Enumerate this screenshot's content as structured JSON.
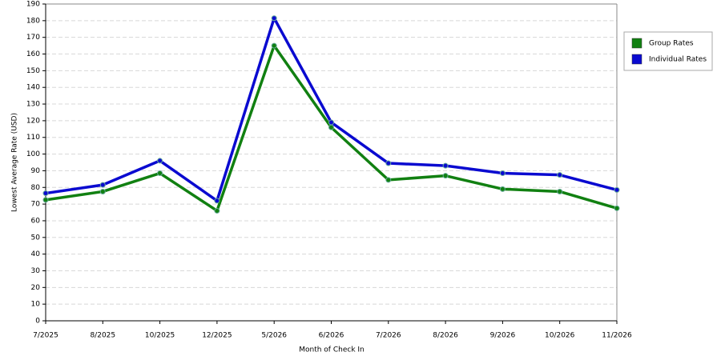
{
  "chart_data": {
    "type": "line",
    "y_label": "Lowest Average Rate (USD)",
    "x_label": "Month of Check In",
    "categories": [
      "7/2025",
      "8/2025",
      "10/2025",
      "12/2025",
      "5/2026",
      "6/2026",
      "7/2026",
      "8/2026",
      "9/2026",
      "10/2026",
      "11/2026"
    ],
    "series": [
      {
        "name": "Group Rates",
        "color": "#118011",
        "values": [
          72.5,
          77.5,
          88.5,
          66,
          165,
          116,
          84.5,
          87,
          79,
          77.5,
          67.5
        ]
      },
      {
        "name": "Individual Rates",
        "color": "#0a0ad0",
        "values": [
          76.5,
          81.5,
          96,
          72,
          181.5,
          119,
          94.5,
          93,
          88.5,
          87.5,
          78.5
        ]
      }
    ],
    "ylim": [
      0,
      190
    ],
    "yticks": [
      0,
      10,
      20,
      30,
      40,
      50,
      60,
      70,
      80,
      90,
      100,
      110,
      120,
      130,
      140,
      150,
      160,
      170,
      180,
      190
    ],
    "grid": true,
    "legend": "right"
  }
}
